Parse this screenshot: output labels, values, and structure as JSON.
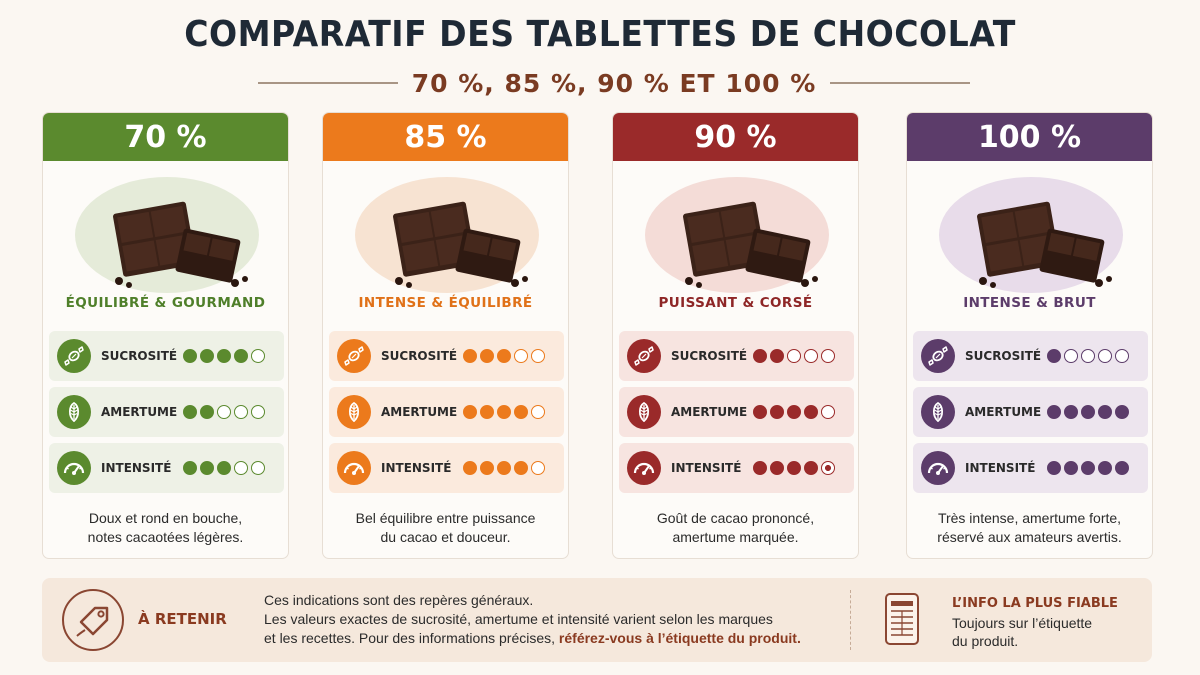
{
  "title": "COMPARATIF DES TABLETTES DE CHOCOLAT",
  "subtitle": "70 %, 85 %, 90 % ET 100 %",
  "metric_labels": {
    "sucrosite": "SUCROSITÉ",
    "amertume": "AMERTUME",
    "intensite": "INTENSITÉ"
  },
  "cards": [
    {
      "header": "70 %",
      "label": "ÉQUILIBRÉ & GOURMAND",
      "description_line1": "Doux et rond en bouche,",
      "description_line2": "notes cacaotées légères.",
      "color": "#5b8a2e",
      "label_color": "#4f7f2a",
      "metric_bg": "#eef1e6",
      "halo": "#e5ebd9",
      "ratings": {
        "sucrosite": 4,
        "amertume": 2,
        "intensite": 3
      },
      "max_rating": 5
    },
    {
      "header": "85 %",
      "label": "INTENSE & ÉQUILIBRÉ",
      "description_line1": "Bel équilibre entre puissance",
      "description_line2": "du cacao et douceur.",
      "color": "#ec7a1c",
      "label_color": "#e07118",
      "metric_bg": "#fbeadd",
      "halo": "#f7e3d2",
      "ratings": {
        "sucrosite": 3,
        "amertume": 4,
        "intensite": 4
      },
      "max_rating": 5
    },
    {
      "header": "90 %",
      "label": "PUISSANT & CORSÉ",
      "description_line1": "Goût de cacao prononcé,",
      "description_line2": "amertume marquée.",
      "color": "#9a2a2a",
      "label_color": "#8e2626",
      "metric_bg": "#f7e4e0",
      "halo": "#f4dcd7",
      "ratings": {
        "sucrosite": 2,
        "amertume": 4,
        "intensite": 4.5
      },
      "max_rating": 5
    },
    {
      "header": "100 %",
      "label": "INTENSE & BRUT",
      "description_line1": "Très intense, amertume forte,",
      "description_line2": "réservé aux amateurs avertis.",
      "color": "#5c3c6a",
      "label_color": "#5c3c6a",
      "metric_bg": "#ede5ee",
      "halo": "#e8dcea",
      "ratings": {
        "sucrosite": 1,
        "amertume": 5,
        "intensite": 5
      },
      "max_rating": 5
    }
  ],
  "bottom": {
    "heading": "À RETENIR",
    "line1": "Ces indications sont des repères généraux.",
    "line2": "Les valeurs exactes de sucrosité, amertume et intensité varient selon les marques",
    "line3_start": "et les recettes. Pour des informations précises, ",
    "line3_highlight": "référez-vous à l’étiquette du produit.",
    "info_title": "L’INFO LA PLUS FIABLE",
    "info_line1": "Toujours sur l’étiquette",
    "info_line2": "du produit."
  }
}
